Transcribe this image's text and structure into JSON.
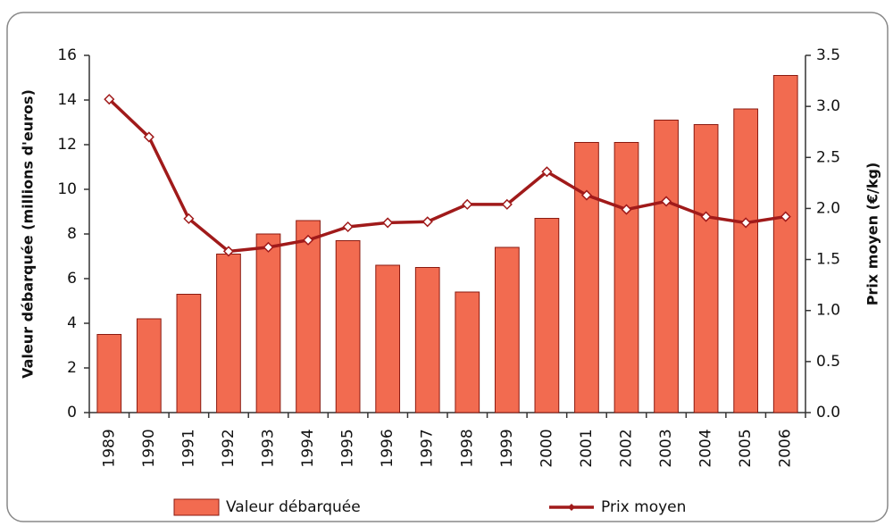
{
  "chart_data": {
    "type": "bar",
    "y_label": "Valeur débarquée (millions d'euros)",
    "y2_label": "Prix moyen (€/kg)",
    "categories": [
      "1989",
      "1990",
      "1991",
      "1992",
      "1993",
      "1994",
      "1995",
      "1996",
      "1997",
      "1998",
      "1999",
      "2000",
      "2001",
      "2002",
      "2003",
      "2004",
      "2005",
      "2006"
    ],
    "series": [
      {
        "name": "Valeur débarquée",
        "type": "bar",
        "color": "#f26b50",
        "values": [
          3.5,
          4.2,
          5.3,
          7.1,
          8.0,
          8.6,
          7.7,
          6.6,
          6.5,
          5.4,
          7.4,
          8.7,
          12.1,
          12.1,
          13.1,
          12.9,
          13.6,
          15.1
        ]
      },
      {
        "name": "Prix moyen",
        "type": "line",
        "axis": "y2",
        "color": "#a01a1a",
        "values": [
          3.07,
          2.7,
          1.9,
          1.58,
          1.62,
          1.69,
          1.82,
          1.86,
          1.87,
          2.04,
          2.04,
          2.36,
          2.13,
          1.99,
          2.07,
          1.92,
          1.86,
          1.92
        ]
      }
    ],
    "ylim": [
      0,
      16
    ],
    "yticks": [
      0,
      2,
      4,
      6,
      8,
      10,
      12,
      14,
      16
    ],
    "y2lim": [
      0,
      3.5
    ],
    "y2ticks": [
      {
        "value": 0,
        "label": "0.0"
      },
      0.5,
      {
        "value": 1,
        "label": "1.0"
      },
      1.5,
      {
        "value": 2,
        "label": "2.0"
      },
      2.5,
      {
        "value": 3,
        "label": "3.0"
      },
      3.5
    ]
  }
}
